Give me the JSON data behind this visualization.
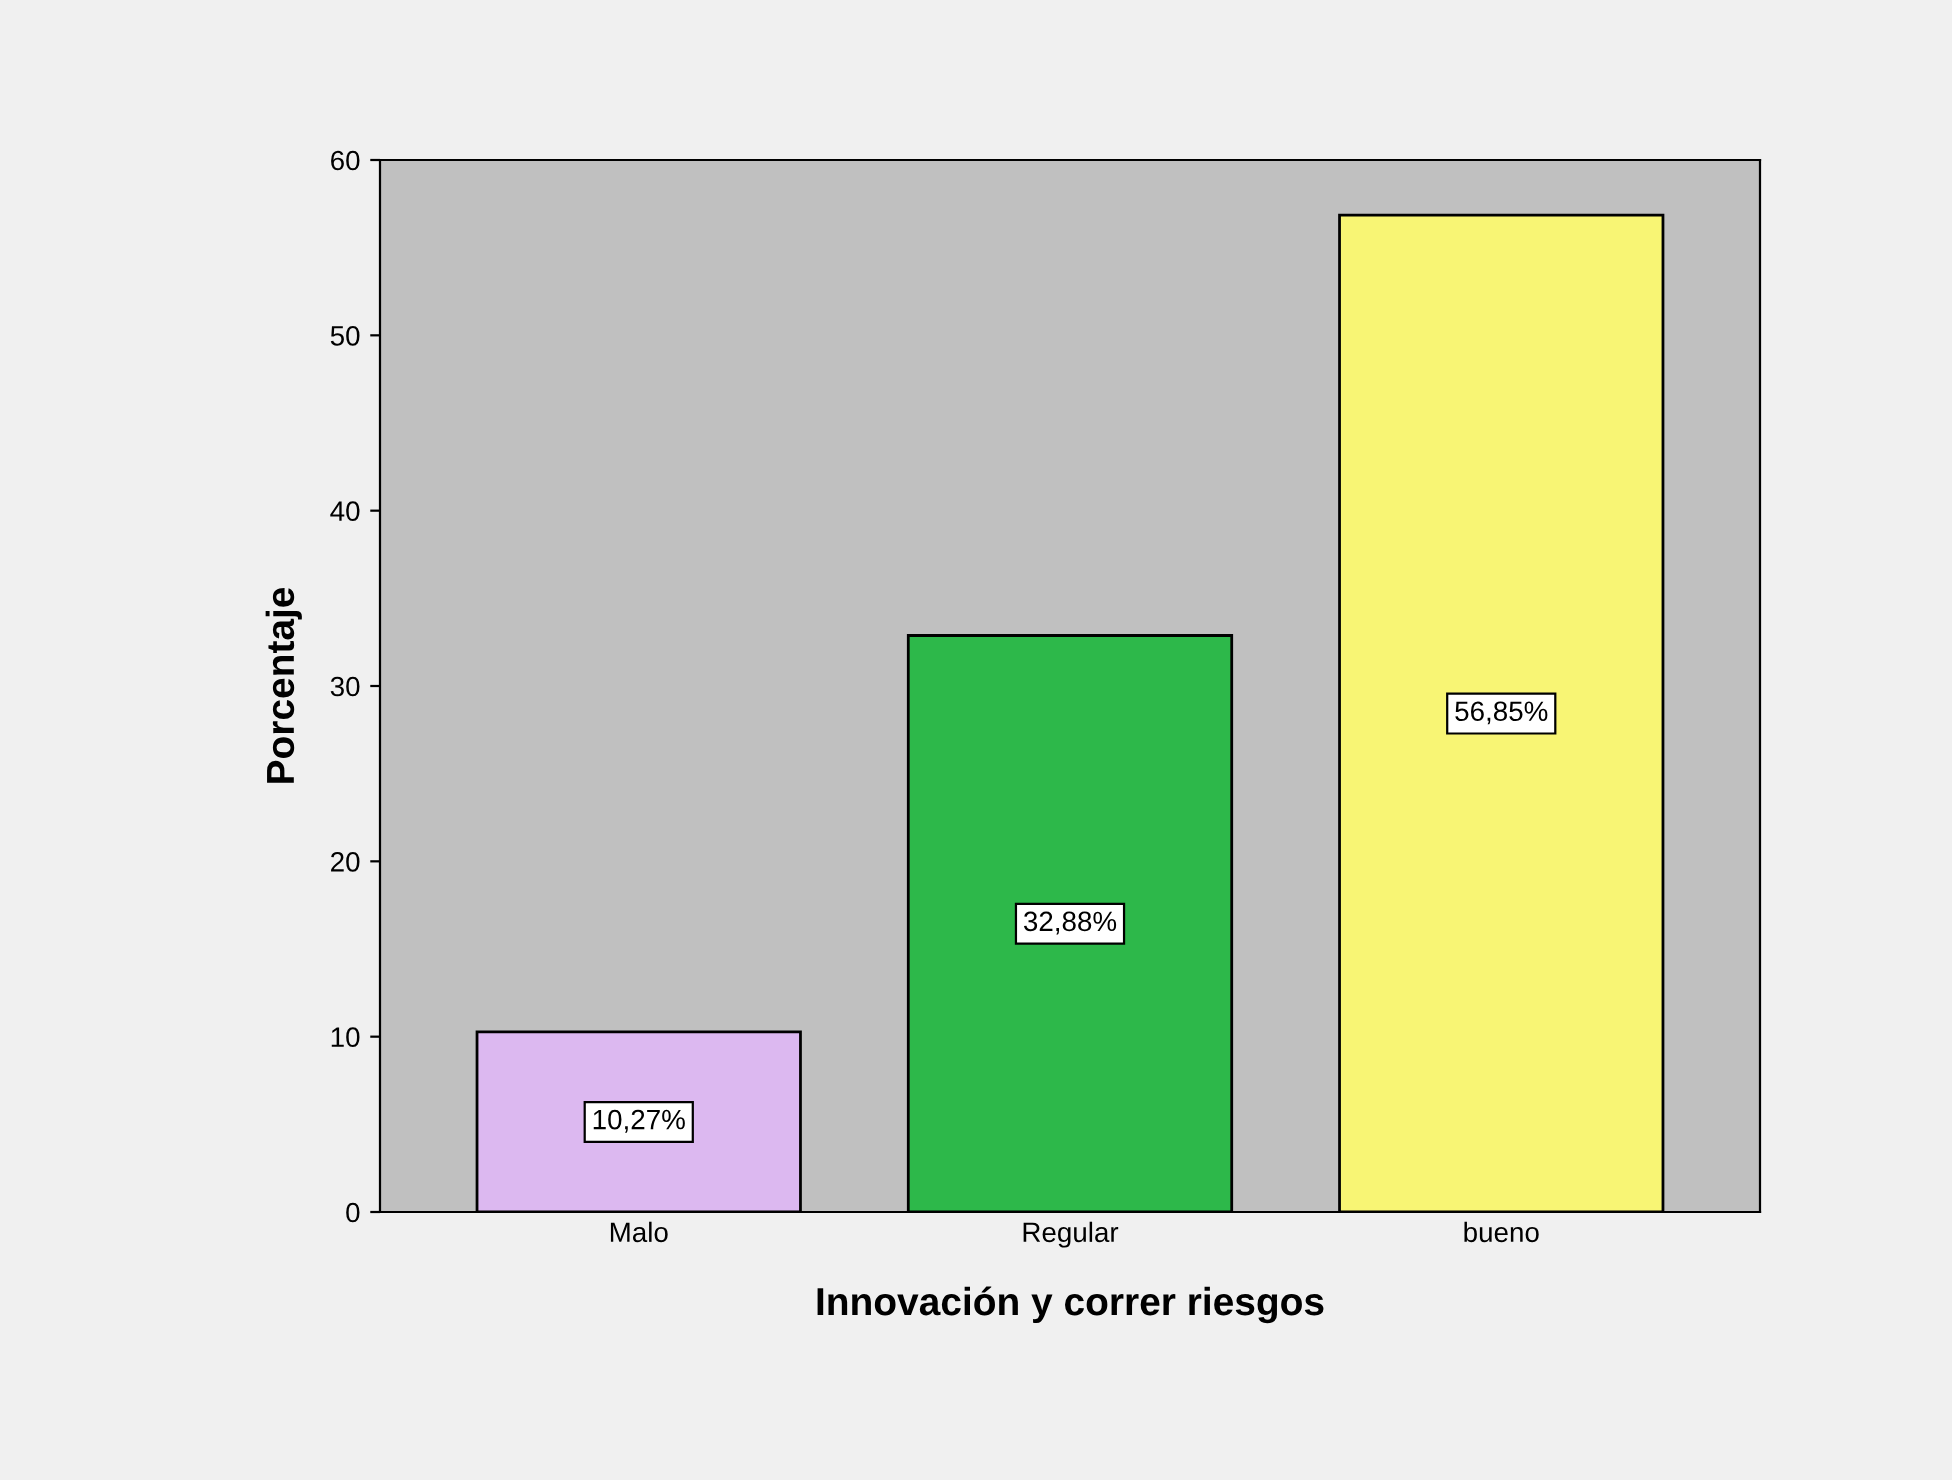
{
  "chart_data": {
    "type": "bar",
    "xlabel": "Innovación y correr riesgos",
    "ylabel": "Porcentaje",
    "categories": [
      "Malo",
      "Regular",
      "bueno"
    ],
    "values": [
      10.27,
      32.88,
      56.85
    ],
    "colors": [
      "#dcb8f0",
      "#2db84a",
      "#f8f574"
    ],
    "value_labels": [
      "10,27%",
      "32,88%",
      "56,85%"
    ],
    "ylim": [
      0,
      60
    ],
    "yticks": [
      0,
      10,
      20,
      30,
      40,
      50,
      60
    ],
    "grid": false,
    "legend": false
  }
}
